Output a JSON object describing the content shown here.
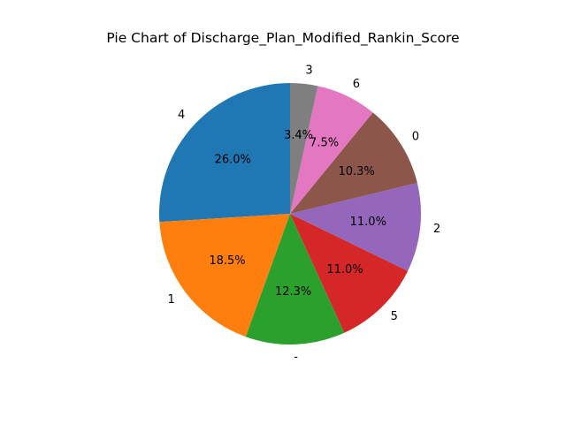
{
  "chart_data": {
    "type": "pie",
    "title": "Pie Chart of Discharge_Plan_Modified_Rankin_Score",
    "start_angle_deg": 90,
    "direction": "counterclockwise",
    "slices": [
      {
        "label": "4",
        "percent": 26.0,
        "pct_label": "26.0%",
        "color": "#1f77b4"
      },
      {
        "label": "1",
        "percent": 18.5,
        "pct_label": "18.5%",
        "color": "#ff7f0e"
      },
      {
        "label": "-",
        "percent": 12.3,
        "pct_label": "12.3%",
        "color": "#2ca02c"
      },
      {
        "label": "5",
        "percent": 11.0,
        "pct_label": "11.0%",
        "color": "#d62728"
      },
      {
        "label": "2",
        "percent": 11.0,
        "pct_label": "11.0%",
        "color": "#9467bd"
      },
      {
        "label": "0",
        "percent": 10.3,
        "pct_label": "10.3%",
        "color": "#8c564b"
      },
      {
        "label": "6",
        "percent": 7.5,
        "pct_label": "7.5%",
        "color": "#e377c2"
      },
      {
        "label": "3",
        "percent": 3.4,
        "pct_label": "3.4%",
        "color": "#7f7f7f"
      }
    ]
  }
}
